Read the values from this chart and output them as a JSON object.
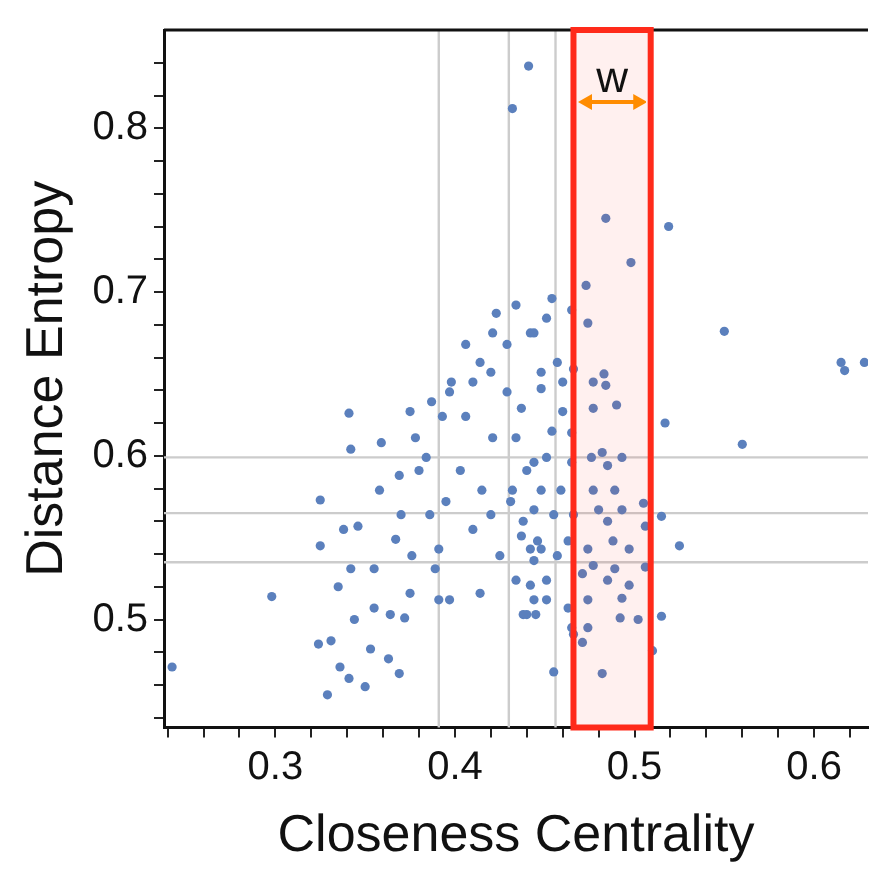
{
  "chart_data": {
    "type": "scatter",
    "xlabel": "Closeness Centrality",
    "ylabel": "Distance Entropy",
    "xlim": [
      0.238,
      0.63
    ],
    "ylim": [
      0.434,
      0.86
    ],
    "xticks": [
      {
        "value": 0.24,
        "label": null
      },
      {
        "value": 0.26,
        "label": null
      },
      {
        "value": 0.28,
        "label": null
      },
      0.3,
      {
        "value": 0.32,
        "label": null
      },
      {
        "value": 0.34,
        "label": null
      },
      {
        "value": 0.36,
        "label": null
      },
      {
        "value": 0.38,
        "label": null
      },
      0.4,
      {
        "value": 0.42,
        "label": null
      },
      {
        "value": 0.44,
        "label": null
      },
      {
        "value": 0.46,
        "label": null
      },
      {
        "value": 0.48,
        "label": null
      },
      0.5,
      {
        "value": 0.52,
        "label": null
      },
      {
        "value": 0.54,
        "label": null
      },
      {
        "value": 0.56,
        "label": null
      },
      {
        "value": 0.58,
        "label": null
      },
      0.6,
      {
        "value": 0.62,
        "label": null
      }
    ],
    "yticks": [
      {
        "value": 0.44,
        "label": null
      },
      {
        "value": 0.46,
        "label": null
      },
      {
        "value": 0.48,
        "label": null
      },
      0.5,
      {
        "value": 0.52,
        "label": null
      },
      {
        "value": 0.54,
        "label": null
      },
      {
        "value": 0.56,
        "label": null
      },
      {
        "value": 0.58,
        "label": null
      },
      0.6,
      {
        "value": 0.62,
        "label": null
      },
      {
        "value": 0.64,
        "label": null
      },
      {
        "value": 0.66,
        "label": null
      },
      {
        "value": 0.68,
        "label": null
      },
      0.7,
      {
        "value": 0.72,
        "label": null
      },
      {
        "value": 0.74,
        "label": null
      },
      {
        "value": 0.76,
        "label": null
      },
      {
        "value": 0.78,
        "label": null
      },
      0.8,
      {
        "value": 0.82,
        "label": null
      },
      {
        "value": 0.84,
        "label": null
      }
    ],
    "grid": false,
    "legend": false,
    "marker": "circle",
    "ref_lines": [
      {
        "axis": "x",
        "value": 0.391,
        "color": "#cccccc"
      },
      {
        "axis": "x",
        "value": 0.43,
        "color": "#cccccc"
      },
      {
        "axis": "x",
        "value": 0.456,
        "color": "#cccccc"
      },
      {
        "axis": "y",
        "value": 0.599,
        "color": "#cccccc"
      },
      {
        "axis": "y",
        "value": 0.565,
        "color": "#cccccc"
      },
      {
        "axis": "y",
        "value": 0.535,
        "color": "#cccccc"
      }
    ],
    "bands": [
      {
        "axis": "x",
        "from": 0.466,
        "to": 0.509,
        "label": "w",
        "color": "#ff2a1a"
      }
    ],
    "series": [
      {
        "color": "#5b80bd",
        "x": [
          0.2425,
          0.298,
          0.441,
          0.432,
          0.484,
          0.519,
          0.498,
          0.473,
          0.55,
          0.615,
          0.617,
          0.628,
          0.56,
          0.517,
          0.525,
          0.515,
          0.515,
          0.51,
          0.482,
          0.455,
          0.329,
          0.324,
          0.331,
          0.325,
          0.325,
          0.335,
          0.336,
          0.341,
          0.342,
          0.338,
          0.346,
          0.342,
          0.344,
          0.35,
          0.341,
          0.353,
          0.355,
          0.355,
          0.358,
          0.359,
          0.363,
          0.364,
          0.367,
          0.369,
          0.37,
          0.369,
          0.375,
          0.372,
          0.376,
          0.378,
          0.38,
          0.375,
          0.384,
          0.386,
          0.387,
          0.389,
          0.391,
          0.393,
          0.395,
          0.397,
          0.398,
          0.391,
          0.397,
          0.403,
          0.406,
          0.41,
          0.406,
          0.41,
          0.414,
          0.415,
          0.414,
          0.42,
          0.421,
          0.421,
          0.42,
          0.423,
          0.425,
          0.429,
          0.429,
          0.431,
          0.434,
          0.434,
          0.434,
          0.438,
          0.44,
          0.442,
          0.444,
          0.446,
          0.448,
          0.448,
          0.442,
          0.451,
          0.454,
          0.444,
          0.457,
          0.46,
          0.465,
          0.466,
          0.448,
          0.437,
          0.454,
          0.465,
          0.46,
          0.477,
          0.483,
          0.484,
          0.49,
          0.477,
          0.474,
          0.493,
          0.482,
          0.476,
          0.485,
          0.477,
          0.489,
          0.465,
          0.459,
          0.451,
          0.44,
          0.432,
          0.444,
          0.455,
          0.466,
          0.48,
          0.485,
          0.493,
          0.505,
          0.506,
          0.497,
          0.488,
          0.474,
          0.463,
          0.448,
          0.437,
          0.444,
          0.457,
          0.477,
          0.489,
          0.506,
          0.497,
          0.485,
          0.471,
          0.451,
          0.442,
          0.451,
          0.444,
          0.463,
          0.474,
          0.493,
          0.502,
          0.492,
          0.465,
          0.466,
          0.474,
          0.438,
          0.445,
          0.471
        ],
        "values": [
          0.471,
          0.514,
          0.838,
          0.812,
          0.745,
          0.74,
          0.718,
          0.704,
          0.676,
          0.657,
          0.652,
          0.657,
          0.607,
          0.62,
          0.545,
          0.563,
          0.502,
          0.481,
          0.467,
          0.468,
          0.454,
          0.485,
          0.487,
          0.545,
          0.573,
          0.52,
          0.471,
          0.626,
          0.604,
          0.555,
          0.557,
          0.531,
          0.5,
          0.459,
          0.464,
          0.482,
          0.507,
          0.531,
          0.579,
          0.608,
          0.476,
          0.503,
          0.549,
          0.588,
          0.564,
          0.467,
          0.516,
          0.501,
          0.539,
          0.611,
          0.591,
          0.627,
          0.599,
          0.564,
          0.633,
          0.531,
          0.512,
          0.624,
          0.572,
          0.639,
          0.645,
          0.543,
          0.512,
          0.591,
          0.668,
          0.645,
          0.624,
          0.555,
          0.657,
          0.579,
          0.516,
          0.651,
          0.675,
          0.611,
          0.564,
          0.687,
          0.539,
          0.668,
          0.639,
          0.572,
          0.524,
          0.692,
          0.611,
          0.56,
          0.503,
          0.675,
          0.596,
          0.548,
          0.651,
          0.579,
          0.543,
          0.684,
          0.696,
          0.675,
          0.657,
          0.645,
          0.689,
          0.653,
          0.641,
          0.629,
          0.615,
          0.614,
          0.627,
          0.645,
          0.65,
          0.643,
          0.631,
          0.629,
          0.681,
          0.599,
          0.602,
          0.599,
          0.594,
          0.579,
          0.579,
          0.596,
          0.579,
          0.599,
          0.591,
          0.579,
          0.567,
          0.564,
          0.564,
          0.567,
          0.56,
          0.567,
          0.571,
          0.557,
          0.543,
          0.548,
          0.543,
          0.548,
          0.543,
          0.551,
          0.536,
          0.539,
          0.533,
          0.531,
          0.532,
          0.521,
          0.524,
          0.528,
          0.524,
          0.521,
          0.512,
          0.512,
          0.507,
          0.512,
          0.513,
          0.5,
          0.501,
          0.495,
          0.491,
          0.495,
          0.503,
          0.503,
          0.486
        ]
      }
    ]
  }
}
